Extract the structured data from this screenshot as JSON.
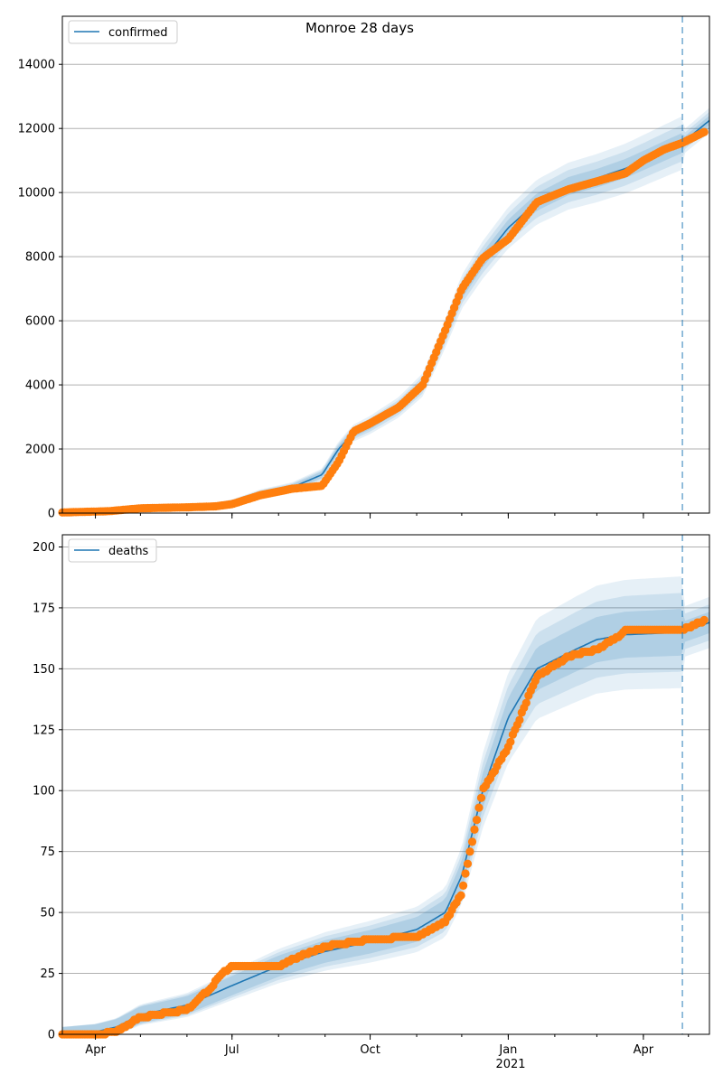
{
  "figure": {
    "title": "Monroe 28 days",
    "x_tick_labels": [
      "Apr",
      "Jul",
      "Oct",
      "Jan",
      "Apr"
    ],
    "x_year_label": "2021",
    "colors": {
      "model": "#1f77b4",
      "observed": "#ff7f0e",
      "band": "#1f77b4",
      "grid": "#b0b0b0",
      "vline": "#1f77b4"
    }
  },
  "chart_data": [
    {
      "type": "line",
      "panel": "top",
      "title": "Monroe 28 days",
      "legend": {
        "label": "confirmed",
        "placement": "upper left"
      },
      "x_axis": {
        "type": "date",
        "range": [
          "2020-03-10",
          "2021-05-15"
        ],
        "ticks": [
          "2020-04-01",
          "2020-07-01",
          "2020-10-01",
          "2021-01-01",
          "2021-04-01"
        ]
      },
      "y_axis": {
        "range": [
          0,
          15500
        ],
        "ticks": [
          0,
          2000,
          4000,
          6000,
          8000,
          10000,
          12000,
          14000
        ]
      },
      "grid": "horizontal",
      "forecast_start": "2021-04-27",
      "series": [
        {
          "name": "confirmed",
          "kind": "model",
          "x": [
            "2020-03-10",
            "2020-04-10",
            "2020-05-01",
            "2020-06-01",
            "2020-06-20",
            "2020-07-01",
            "2020-07-20",
            "2020-08-10",
            "2020-08-30",
            "2020-09-10",
            "2020-09-20",
            "2020-10-01",
            "2020-10-20",
            "2020-11-05",
            "2020-11-20",
            "2020-12-01",
            "2020-12-15",
            "2021-01-01",
            "2021-01-20",
            "2021-02-10",
            "2021-03-01",
            "2021-03-20",
            "2021-04-01",
            "2021-04-15",
            "2021-04-27",
            "2021-05-15"
          ],
          "y": [
            0,
            50,
            150,
            180,
            220,
            310,
            600,
            800,
            1200,
            2000,
            2500,
            2750,
            3300,
            4000,
            5600,
            6900,
            7900,
            8900,
            9700,
            10200,
            10450,
            10750,
            11000,
            11300,
            11550,
            12250
          ]
        },
        {
          "name": "confirmed",
          "kind": "observed",
          "x": [
            "2020-03-10",
            "2020-04-10",
            "2020-05-01",
            "2020-06-01",
            "2020-06-20",
            "2020-07-01",
            "2020-07-20",
            "2020-08-10",
            "2020-08-30",
            "2020-09-10",
            "2020-09-20",
            "2020-10-01",
            "2020-10-20",
            "2020-11-05",
            "2020-11-20",
            "2020-12-01",
            "2020-12-15",
            "2021-01-01",
            "2021-01-20",
            "2021-02-10",
            "2021-03-01",
            "2021-03-20",
            "2021-04-01",
            "2021-04-15",
            "2021-04-27",
            "2021-05-12"
          ],
          "y": [
            20,
            60,
            150,
            180,
            210,
            280,
            560,
            760,
            850,
            1600,
            2550,
            2800,
            3300,
            4000,
            5700,
            7000,
            7950,
            8550,
            9700,
            10100,
            10350,
            10600,
            11000,
            11350,
            11550,
            11900
          ]
        }
      ]
    },
    {
      "type": "line",
      "panel": "bottom",
      "legend": {
        "label": "deaths",
        "placement": "upper left"
      },
      "x_axis": {
        "type": "date",
        "range": [
          "2020-03-10",
          "2021-05-15"
        ],
        "ticks": [
          "2020-04-01",
          "2020-07-01",
          "2020-10-01",
          "2021-01-01",
          "2021-04-01"
        ]
      },
      "y_axis": {
        "range": [
          0,
          205
        ],
        "ticks": [
          0,
          25,
          50,
          75,
          100,
          125,
          150,
          175,
          200
        ]
      },
      "grid": "horizontal",
      "forecast_start": "2021-04-27",
      "series": [
        {
          "name": "deaths",
          "kind": "model",
          "x": [
            "2020-03-10",
            "2020-04-01",
            "2020-04-15",
            "2020-05-01",
            "2020-06-01",
            "2020-06-20",
            "2020-07-01",
            "2020-08-01",
            "2020-09-01",
            "2020-10-01",
            "2020-11-01",
            "2020-11-20",
            "2020-12-01",
            "2020-12-15",
            "2021-01-01",
            "2021-01-20",
            "2021-02-15",
            "2021-03-01",
            "2021-03-20",
            "2021-04-27",
            "2021-05-15"
          ],
          "y": [
            0,
            1,
            3,
            8,
            12,
            17,
            20,
            28,
            34,
            38,
            43,
            50,
            65,
            100,
            130,
            150,
            158,
            162,
            164,
            165,
            169
          ]
        },
        {
          "name": "deaths",
          "kind": "observed",
          "x": [
            "2020-03-10",
            "2020-04-01",
            "2020-04-15",
            "2020-05-01",
            "2020-06-01",
            "2020-06-15",
            "2020-06-25",
            "2020-07-01",
            "2020-08-01",
            "2020-08-15",
            "2020-09-01",
            "2020-10-01",
            "2020-11-01",
            "2020-11-20",
            "2020-12-01",
            "2020-12-15",
            "2021-01-01",
            "2021-01-20",
            "2021-02-10",
            "2021-03-01",
            "2021-03-15",
            "2021-03-20",
            "2021-04-27",
            "2021-05-12"
          ],
          "y": [
            0,
            0,
            1,
            7,
            10,
            18,
            25,
            28,
            28,
            32,
            36,
            39,
            40,
            46,
            58,
            100,
            118,
            147,
            155,
            158,
            163,
            166,
            166,
            170
          ]
        }
      ]
    }
  ]
}
